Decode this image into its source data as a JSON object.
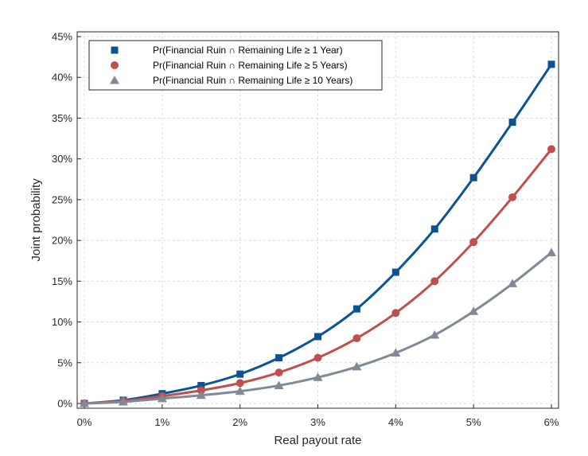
{
  "chart_data": {
    "type": "line",
    "title": "",
    "xlabel": "Real payout rate",
    "ylabel": "Joint probability",
    "x": [
      0,
      0.5,
      1,
      1.5,
      2,
      2.5,
      3,
      3.5,
      4,
      4.5,
      5,
      5.5,
      6
    ],
    "xlim": [
      0,
      6
    ],
    "ylim": [
      0,
      45
    ],
    "xticks": [
      "0%",
      "1%",
      "2%",
      "3%",
      "4%",
      "5%",
      "6%"
    ],
    "yticks": [
      "0%",
      "5%",
      "10%",
      "15%",
      "20%",
      "25%",
      "30%",
      "35%",
      "40%",
      "45%"
    ],
    "grid": true,
    "legend_position": "top-left",
    "series": [
      {
        "name": "Pr(Financial Ruin ∩ Remaining Life ≥ 1 Year)",
        "color": "#0b5394",
        "marker": "square",
        "values": [
          0.0,
          0.4,
          1.2,
          2.2,
          3.6,
          5.6,
          8.2,
          11.6,
          16.1,
          21.4,
          27.7,
          34.5,
          41.6
        ]
      },
      {
        "name": "Pr(Financial Ruin ∩ Remaining Life ≥ 5 Years)",
        "color": "#c0504d",
        "marker": "circle",
        "values": [
          0.0,
          0.3,
          0.9,
          1.6,
          2.5,
          3.8,
          5.6,
          8.0,
          11.1,
          15.0,
          19.8,
          25.3,
          31.2
        ]
      },
      {
        "name": "Pr(Financial Ruin ∩ Remaining Life ≥ 10 Years)",
        "color": "#808a96",
        "marker": "triangle",
        "values": [
          0.0,
          0.2,
          0.6,
          1.0,
          1.5,
          2.2,
          3.2,
          4.5,
          6.2,
          8.4,
          11.3,
          14.7,
          18.5
        ]
      }
    ]
  }
}
